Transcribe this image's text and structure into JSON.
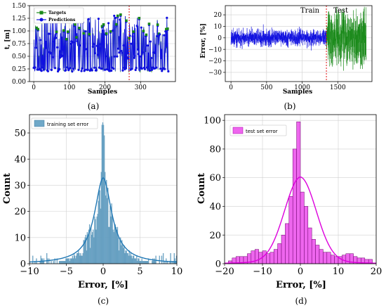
{
  "captions": {
    "a": "(a)",
    "b": "(b)",
    "c": "(c)",
    "d": "(d)"
  },
  "chart_data": [
    {
      "panel": "a",
      "type": "line",
      "xlabel": "Samples",
      "ylabel": "t, [m]",
      "xlim": [
        -12,
        398
      ],
      "ylim": [
        0.0,
        1.5
      ],
      "xticks": [
        0,
        100,
        200,
        300
      ],
      "yticks": [
        0.0,
        0.25,
        0.5,
        0.75,
        1.0,
        1.25,
        1.5
      ],
      "ytick_labels": [
        "0.00",
        "0.25",
        "0.50",
        "0.75",
        "1.00",
        "1.25",
        "1.50"
      ],
      "legend": [
        "Targets",
        "Predictions"
      ],
      "legend_position": "top-left",
      "split_x": 268,
      "n_samples": 380,
      "value_range": [
        0.2,
        1.3
      ],
      "colors": {
        "targets": "#1a8a1a",
        "predictions": "#1010e0",
        "split": "#e01010"
      }
    },
    {
      "panel": "b",
      "type": "line",
      "xlabel": "Samples",
      "ylabel": "Error, [%]",
      "xlim": [
        -80,
        1980
      ],
      "ylim": [
        -38,
        28
      ],
      "xticks": [
        0,
        500,
        1000,
        1500
      ],
      "yticks": [
        -30,
        -20,
        -10,
        0,
        10,
        20
      ],
      "annotations": [
        "Train",
        "Test"
      ],
      "split_x": 1340,
      "n_samples": 1900,
      "train_spread": 8,
      "test_spread": 30,
      "colors": {
        "train": "#1010e0",
        "test": "#1a8a1a",
        "split": "#e01010"
      }
    },
    {
      "panel": "c",
      "type": "histogram",
      "xlabel": "Error, [%]",
      "ylabel": "Count",
      "xlim": [
        -10,
        10
      ],
      "ylim": [
        0,
        57
      ],
      "xticks": [
        -10,
        -5,
        0,
        5,
        10
      ],
      "yticks": [
        0,
        10,
        20,
        30,
        40,
        50
      ],
      "legend": [
        "training set error"
      ],
      "legend_position": "top-left",
      "bin_width": 0.1,
      "peak": 55,
      "kde_peak": 33,
      "colors": {
        "bars": "#6fa8c8",
        "kde": "#1f77b4"
      }
    },
    {
      "panel": "d",
      "type": "histogram",
      "xlabel": "Error, [%]",
      "ylabel": "Count",
      "xlim": [
        -20,
        20
      ],
      "ylim": [
        0,
        104
      ],
      "xticks": [
        -20,
        -10,
        0,
        10,
        20
      ],
      "yticks": [
        0,
        20,
        40,
        60,
        80,
        100
      ],
      "legend": [
        "test set error"
      ],
      "legend_position": "top-left",
      "bin_edges_start": -19,
      "bin_width": 1,
      "counts": [
        2,
        4,
        5,
        5,
        5,
        7,
        9,
        10,
        8,
        9,
        7,
        8,
        10,
        14,
        20,
        28,
        47,
        80,
        99,
        50,
        40,
        25,
        17,
        13,
        10,
        8,
        8,
        6,
        5,
        5,
        6,
        7,
        7,
        5,
        4,
        4,
        3,
        3
      ],
      "kde_peak": 57,
      "colors": {
        "bars": "#ee66ee",
        "kde": "#dd00dd"
      }
    }
  ]
}
